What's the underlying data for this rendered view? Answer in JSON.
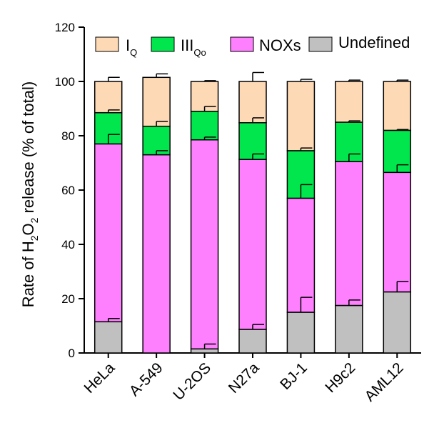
{
  "chart_data": {
    "type": "bar",
    "stacked": true,
    "categories": [
      "HeLa",
      "A-549",
      "U-2OS",
      "N27a",
      "BJ-1",
      "H9c2",
      "AML12"
    ],
    "series": [
      {
        "name": "Undefined",
        "color": "#c0c0c0",
        "values": [
          11.5,
          0,
          1.5,
          8.7,
          15,
          17.5,
          22.5
        ],
        "errors": [
          1.2,
          0,
          1.8,
          1.8,
          5.5,
          2.0,
          3.8
        ]
      },
      {
        "name": "NOXs",
        "color": "#ff80ff",
        "values": [
          65.5,
          73,
          77,
          62.6,
          42,
          53,
          44
        ],
        "errors": [
          3.5,
          1.5,
          1.0,
          2.0,
          5.0,
          2.8,
          2.8
        ]
      },
      {
        "name": "IIIQo",
        "name_main": "III",
        "name_sub": "Qo",
        "color": "#00e64c",
        "values": [
          11.5,
          10.5,
          10.5,
          13.5,
          17.5,
          14.5,
          15.5
        ],
        "errors": [
          1.0,
          1.8,
          1.8,
          1.8,
          1.0,
          0.5,
          0.3
        ]
      },
      {
        "name": "IQ",
        "name_main": "I",
        "name_sub": "Q",
        "color": "#fdd9b5",
        "values": [
          11.5,
          18,
          11,
          15.2,
          25.5,
          15,
          18
        ],
        "errors": [
          1.5,
          1.3,
          0.3,
          3.3,
          0.8,
          0.5,
          0.5
        ]
      }
    ],
    "ylabel_pre": "Rate of H",
    "ylabel_sub1": "2",
    "ylabel_mid": "O",
    "ylabel_sub2": "2",
    "ylabel_post": " release (% of total)",
    "ylim": [
      0,
      120
    ],
    "yticks": [
      0,
      20,
      40,
      60,
      80,
      100,
      120
    ],
    "legend_position": "top"
  }
}
